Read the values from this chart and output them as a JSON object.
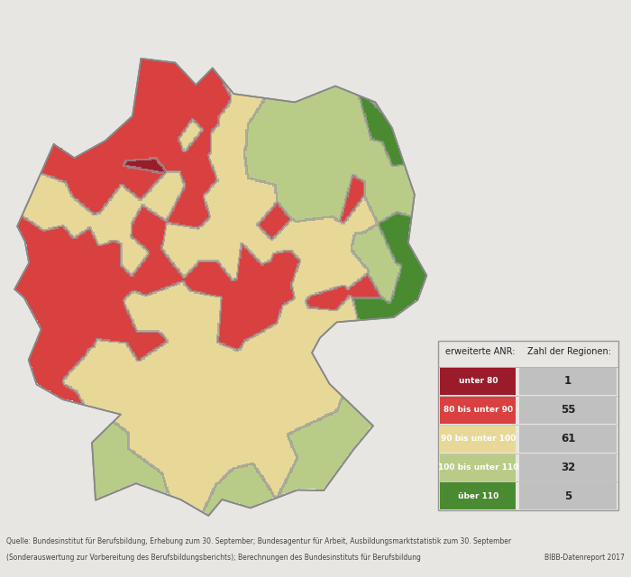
{
  "background_color": "#e8e6e3",
  "map_face_color": "#e8e6e3",
  "border_color": "#aaaaaa",
  "legend": {
    "header_col1": "erweiterte ANR:",
    "header_col2": "Zahl der Regionen:",
    "rows": [
      {
        "label": "unter 80",
        "color": "#9b1b2a",
        "count": "1"
      },
      {
        "label": "80 bis unter 90",
        "color": "#d94040",
        "count": "55"
      },
      {
        "label": "90 bis unter 100",
        "color": "#e8d898",
        "count": "61"
      },
      {
        "label": "100 bis unter 110",
        "color": "#b8cc88",
        "count": "32"
      },
      {
        "label": "über 110",
        "color": "#4a8a30",
        "count": "5"
      }
    ]
  },
  "source_line1": "Quelle: Bundesinstitut für Berufsbildung, Erhebung zum 30. September; Bundesagentur für Arbeit, Ausbildungsmarktstatistik zum 30. September",
  "source_line2": "(Sonderauswertung zur Vorbereitung des Berufsbildungsberichts); Berechnungen des Bundesinstituts für Berufsbildung",
  "source_right": "BIBB-Datenreport 2017"
}
